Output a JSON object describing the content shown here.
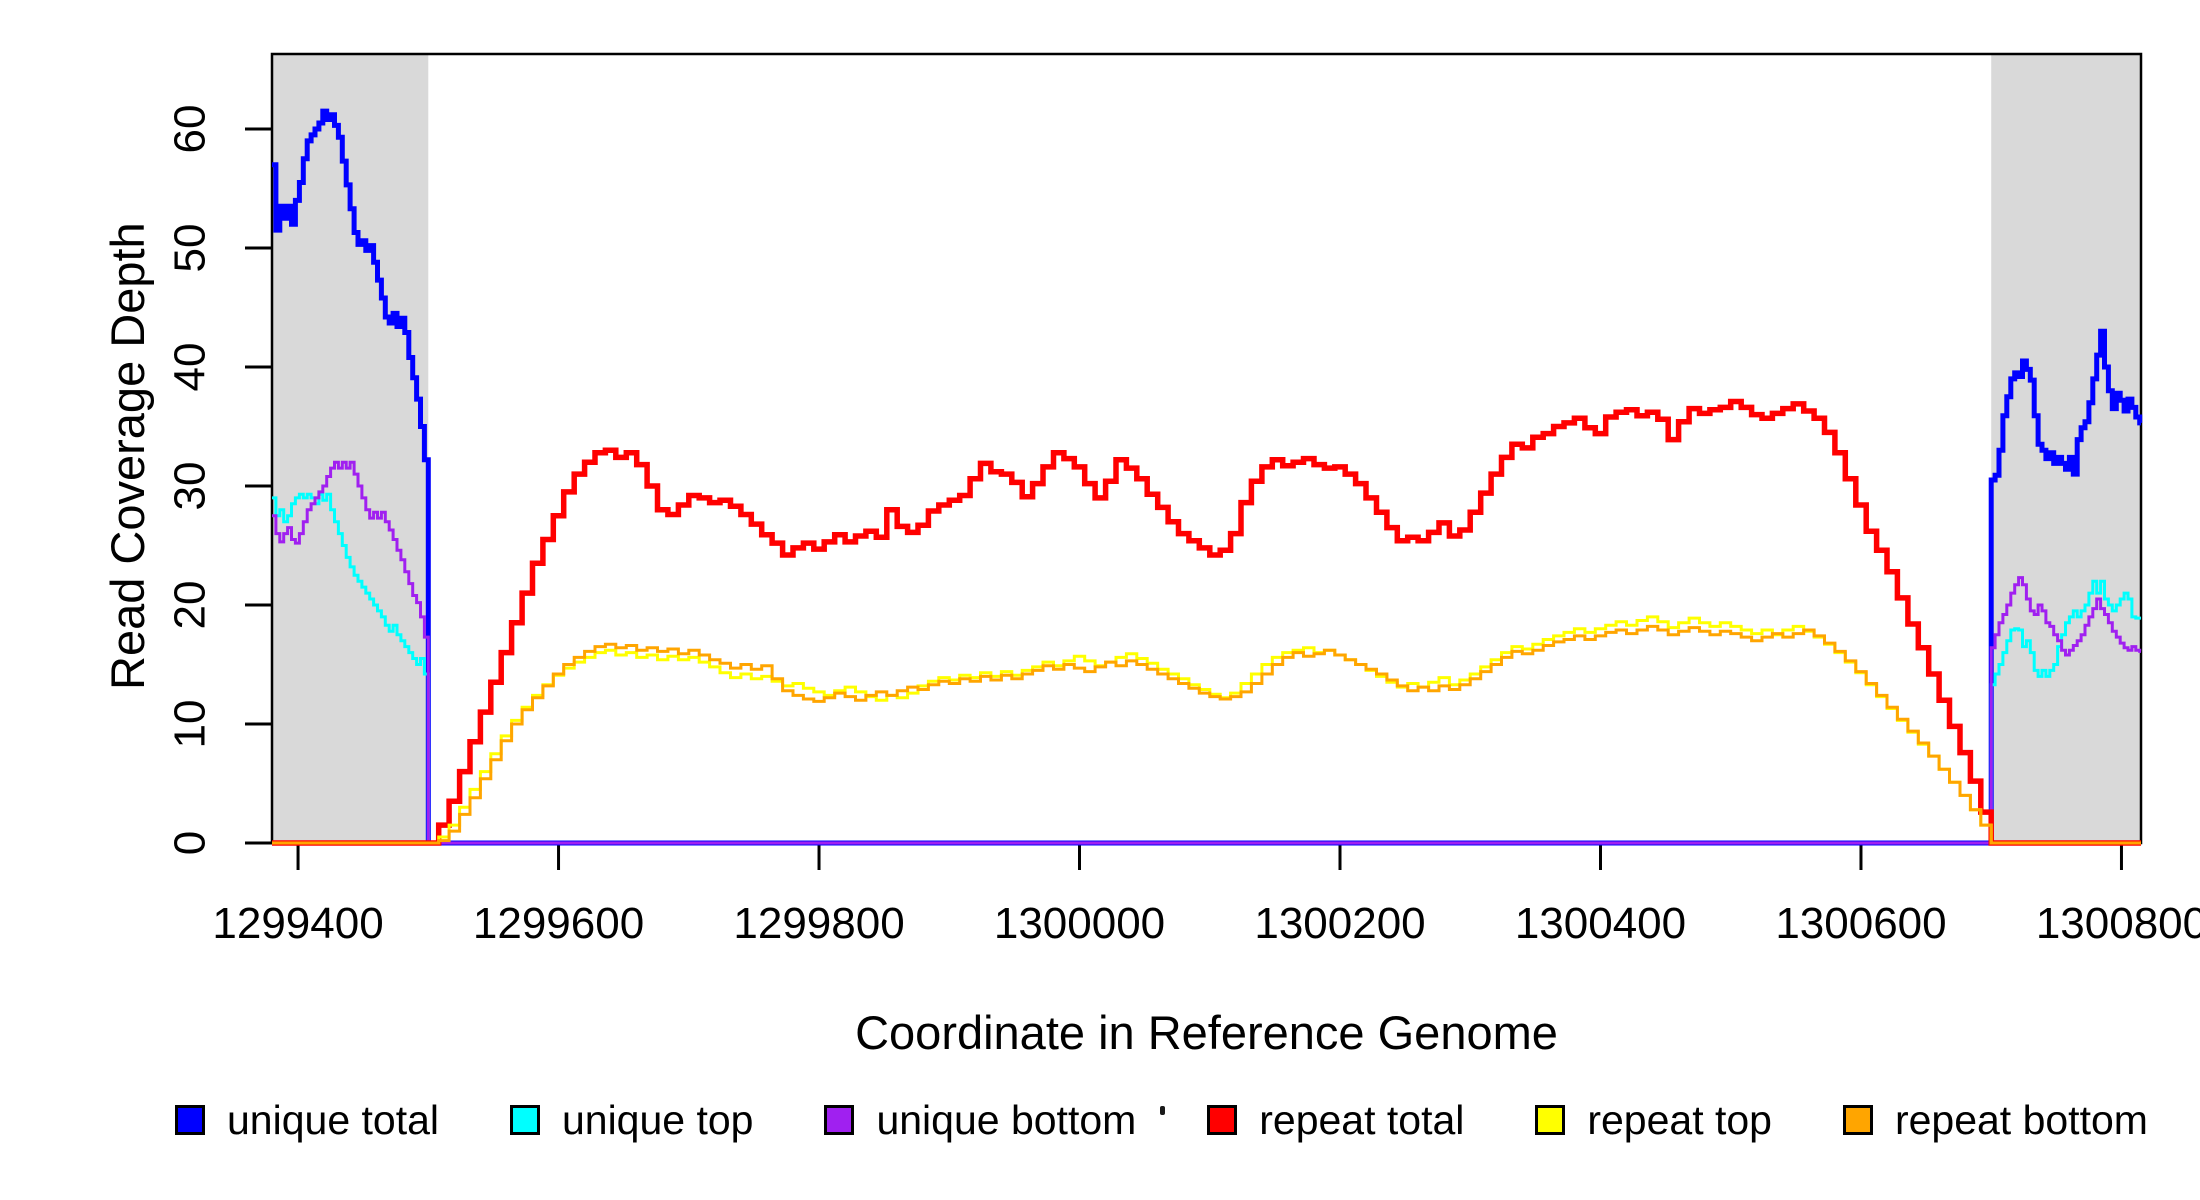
{
  "chart_data": {
    "type": "line",
    "title": "",
    "x_label": "Coordinate in Reference Genome",
    "y_label": "Read Coverage Depth",
    "xlim": [
      1299380,
      1300815
    ],
    "ylim": [
      0,
      66.3
    ],
    "x_ticks": [
      1299400,
      1299600,
      1299800,
      1300000,
      1300200,
      1300400,
      1300600,
      1300800
    ],
    "y_ticks": [
      0,
      10,
      20,
      30,
      40,
      50,
      60
    ],
    "grid": "off",
    "legend_position": "bottom",
    "shade_color": "#D9D9D9",
    "box_color": "#000000",
    "shaded_regions": [
      {
        "x_from": 1299380,
        "x_to": 1299500
      },
      {
        "x_from": 1300700,
        "x_to": 1300815
      }
    ],
    "series": [
      {
        "name": "unique total",
        "color": "#0000FF",
        "line_width": 5,
        "segments": [
          {
            "x0": 1299380,
            "step": 3,
            "v": [
              57,
              51.5,
              53.5,
              52.5,
              53.5,
              52,
              54,
              55.5,
              57.5,
              59,
              59.5,
              60,
              60.5,
              61.5,
              60.8,
              61.2,
              60.3,
              59.3,
              57.3,
              55.3,
              53.3,
              51.3,
              50.3,
              50.6,
              49.8,
              50.2,
              48.8,
              47.3,
              45.8,
              44.2,
              43.7,
              44.5,
              43.4,
              44.1,
              42.9,
              40.8,
              39.1,
              37.3,
              35,
              32.2
            ]
          },
          {
            "x0": 1299500,
            "step": 1,
            "v": [
              0
            ]
          },
          {
            "x0": 1300700,
            "step": 3,
            "v": [
              30.5,
              30.9,
              33,
              35.9,
              37.5,
              39,
              39.5,
              39.2,
              40.5,
              39.8,
              38.9,
              35.9,
              33.5,
              33,
              32.3,
              32.8,
              31.9,
              32.4,
              31.9,
              31.4,
              32.4,
              31,
              33.9,
              34.9,
              35.4,
              37,
              39,
              41,
              43,
              40,
              38,
              36.5,
              37.8,
              37.2,
              36.3,
              37.3,
              36.6,
              35.8,
              35.3
            ]
          }
        ]
      },
      {
        "name": "unique top",
        "color": "#00FFFF",
        "line_width": 3,
        "segments": [
          {
            "x0": 1299380,
            "step": 3,
            "v": [
              29,
              27.5,
              28,
              27,
              27.5,
              28.5,
              29,
              29.3,
              29,
              29.3,
              29,
              28.5,
              29.3,
              28.8,
              29.3,
              28,
              27,
              26,
              25,
              24,
              23.2,
              22.5,
              22,
              21.5,
              21,
              20.5,
              20,
              19.5,
              19,
              18.3,
              17.8,
              18.3,
              17.5,
              17,
              16.5,
              16,
              15.5,
              15,
              15.5,
              14.2
            ]
          },
          {
            "x0": 1299500,
            "step": 1,
            "v": [
              0
            ]
          },
          {
            "x0": 1300700,
            "step": 3,
            "v": [
              13.3,
              14.2,
              15,
              16,
              17,
              17.9,
              18,
              17.9,
              16.5,
              17,
              16,
              14.5,
              14,
              14.5,
              14,
              14.5,
              15,
              16.5,
              17.5,
              18.5,
              19,
              19.5,
              19,
              19.5,
              20,
              21,
              22,
              21,
              22,
              20.5,
              20,
              19.5,
              20,
              20.5,
              21,
              20.5,
              19,
              18.9,
              18.9
            ]
          }
        ]
      },
      {
        "name": "unique bottom",
        "color": "#A020F0",
        "line_width": 3,
        "segments": [
          {
            "x0": 1299380,
            "step": 3,
            "v": [
              27.5,
              26,
              25.3,
              26,
              26.5,
              25.5,
              25.2,
              26,
              27,
              28,
              28.5,
              29,
              29.5,
              30,
              30.8,
              31.5,
              32,
              31.5,
              32,
              31.5,
              32,
              31,
              30,
              29,
              28,
              27.3,
              27.8,
              27.3,
              27.8,
              27,
              26.3,
              25.5,
              24.6,
              23.8,
              22.8,
              21.8,
              20.8,
              20.2,
              19,
              17.3
            ]
          },
          {
            "x0": 1299500,
            "step": 1,
            "v": [
              0
            ]
          },
          {
            "x0": 1300700,
            "step": 3,
            "v": [
              16.4,
              17.5,
              18.5,
              19.2,
              20,
              21,
              21.7,
              22.3,
              21.7,
              20.5,
              19.5,
              19.2,
              20,
              19.5,
              18.5,
              18.2,
              17.5,
              17,
              16.2,
              15.8,
              16.2,
              16.6,
              17,
              17.5,
              18.3,
              19,
              19.7,
              20.5,
              19.7,
              19.2,
              18.5,
              17.8,
              17.3,
              16.8,
              16.4,
              16.2,
              16.5,
              16.2,
              16.1
            ]
          }
        ]
      },
      {
        "name": "repeat total",
        "color": "#FF0000",
        "line_width": 5.5,
        "segments": [
          {
            "x0": 1299380,
            "step": 1,
            "v": [
              0
            ]
          },
          {
            "x0": 1299500,
            "step": 8,
            "v": [
              0,
              1.5,
              3.5,
              6,
              8.5,
              11,
              13.5,
              16,
              18.5,
              21,
              23.5,
              25.5,
              27.5,
              29.5,
              31,
              32,
              32.8,
              33,
              32.4,
              32.8,
              31.8,
              30,
              28,
              27.6,
              28.4,
              29.2,
              29,
              28.6,
              28.8,
              28.3,
              27.6,
              26.8,
              25.9,
              25.2,
              24.2,
              24.8,
              25.2,
              24.7,
              25.3,
              25.9,
              25.3,
              25.8,
              26.2,
              25.7,
              28,
              26.6,
              26.1,
              26.7,
              27.9,
              28.4,
              28.8,
              29.2,
              30.6,
              31.9,
              31.2,
              31,
              30.3,
              29.1,
              30.2,
              31.6,
              32.8,
              32.3,
              31.6,
              30.2,
              29,
              30.4,
              32.2,
              31.5,
              30.6,
              29.3,
              28.2,
              27,
              26,
              25.4,
              24.8,
              24.2,
              24.6,
              26,
              28.6,
              30.4,
              31.6,
              32.2,
              31.7,
              32,
              32.3,
              31.8,
              31.5,
              31.6,
              31,
              30.2,
              29,
              27.8,
              26.5,
              25.4,
              25.7,
              25.4,
              26.1,
              26.9,
              25.8,
              26.3,
              27.8,
              29.4,
              31,
              32.4,
              33.5,
              33.2,
              34.1,
              34.4,
              35,
              35.3,
              35.7,
              34.9,
              34.4,
              35.8,
              36.2,
              36.4,
              35.9,
              36.2,
              35.6,
              33.9,
              35.4,
              36.5,
              36.1,
              36.4,
              36.6,
              37.1,
              36.6,
              36,
              35.7,
              36.1,
              36.5,
              36.9,
              36.3,
              35.7,
              34.5,
              32.8,
              30.6,
              28.4,
              26.2,
              24.6,
              22.8,
              20.6,
              18.4,
              16.4,
              14.2,
              12,
              9.8,
              7.6,
              5.2,
              2.6,
              0
            ]
          },
          {
            "x0": 1300700,
            "step": 1,
            "v": [
              0
            ]
          }
        ]
      },
      {
        "name": "repeat top",
        "color": "#FFFF00",
        "line_width": 3,
        "segments": [
          {
            "x0": 1299380,
            "step": 1,
            "v": [
              0
            ]
          },
          {
            "x0": 1299500,
            "step": 8,
            "v": [
              0,
              0.5,
              1.5,
              3,
              4.5,
              6,
              7.5,
              9,
              10.3,
              11.4,
              12.4,
              13.3,
              14.1,
              14.7,
              15.2,
              15.6,
              16,
              16.2,
              15.8,
              16,
              15.6,
              15.8,
              15.4,
              15.7,
              15.4,
              15.6,
              15.2,
              14.8,
              14.3,
              13.9,
              14.2,
              13.8,
              14,
              13.6,
              13.2,
              13.4,
              13,
              12.7,
              12.4,
              12.8,
              13.1,
              12.7,
              12.3,
              12,
              12.4,
              12.2,
              12.6,
              13.2,
              13.6,
              13.9,
              13.7,
              14.1,
              13.9,
              14.3,
              14,
              14.4,
              14.1,
              14.5,
              14.8,
              15.2,
              14.9,
              15.3,
              15.7,
              15.3,
              14.9,
              15.2,
              15.6,
              15.9,
              15.5,
              15.1,
              14.6,
              14.2,
              13.8,
              13.3,
              12.9,
              12.5,
              12.2,
              12.6,
              13.4,
              14.2,
              15,
              15.6,
              16,
              16.2,
              16.4,
              16,
              16.2,
              15.8,
              15.4,
              15,
              14.5,
              14,
              13.5,
              13.1,
              13.4,
              13.1,
              13.5,
              13.9,
              13.3,
              13.7,
              14.2,
              14.8,
              15.4,
              16,
              16.5,
              16.3,
              16.7,
              17.1,
              17.4,
              17.7,
              18,
              17.7,
              18,
              18.3,
              18.6,
              18.3,
              18.7,
              19,
              18.6,
              18.1,
              18.5,
              18.9,
              18.5,
              18.2,
              18.5,
              18.2,
              17.9,
              17.6,
              17.9,
              17.5,
              17.9,
              18.2,
              17.8,
              17.3,
              16.7,
              16,
              15.2,
              14.3,
              13.3,
              12.3,
              11.3,
              10.3,
              9.3,
              8.3,
              7.3,
              6.2,
              5.1,
              4,
              2.8,
              1.5,
              0
            ]
          },
          {
            "x0": 1300700,
            "step": 1,
            "v": [
              0
            ]
          }
        ]
      },
      {
        "name": "repeat bottom",
        "color": "#FFA500",
        "line_width": 3,
        "segments": [
          {
            "x0": 1299380,
            "step": 1,
            "v": [
              0
            ]
          },
          {
            "x0": 1299500,
            "step": 8,
            "v": [
              0,
              0.2,
              1,
              2.4,
              3.8,
              5.4,
              7,
              8.6,
              10,
              11.2,
              12.2,
              13.2,
              14.2,
              15,
              15.6,
              16.1,
              16.5,
              16.7,
              16.4,
              16.6,
              16.2,
              16.4,
              16.1,
              16.3,
              15.9,
              16.2,
              15.8,
              15.4,
              15.1,
              14.7,
              15,
              14.6,
              14.9,
              13.8,
              12.8,
              12.4,
              12.1,
              11.9,
              12.2,
              12.6,
              12.3,
              12,
              12.4,
              12.7,
              12.4,
              12.8,
              13.1,
              12.9,
              13.3,
              13.6,
              13.4,
              13.8,
              13.6,
              14,
              13.7,
              14.1,
              13.8,
              14.2,
              14.5,
              14.9,
              14.6,
              15,
              14.7,
              14.4,
              14.8,
              15.2,
              14.9,
              15.3,
              15,
              14.6,
              14.2,
              13.8,
              13.4,
              13,
              12.6,
              12.3,
              12.1,
              12.3,
              12.7,
              13.4,
              14.2,
              15,
              15.6,
              16,
              15.7,
              15.9,
              16.2,
              15.8,
              15.4,
              15,
              14.6,
              14.2,
              13.7,
              13.2,
              12.8,
              13.1,
              12.8,
              13.2,
              12.9,
              13.3,
              13.8,
              14.4,
              15,
              15.6,
              16.1,
              15.9,
              16.2,
              16.6,
              16.9,
              17.1,
              17.4,
              17.1,
              17.4,
              17.7,
              17.9,
              17.6,
              17.9,
              18.2,
              17.9,
              17.5,
              17.8,
              18.1,
              17.8,
              17.5,
              17.8,
              17.6,
              17.3,
              17,
              17.3,
              17.6,
              17.3,
              17.6,
              17.9,
              17.4,
              16.8,
              16.1,
              15.3,
              14.4,
              13.4,
              12.4,
              11.4,
              10.4,
              9.4,
              8.4,
              7.3,
              6.2,
              5.1,
              4,
              2.8,
              1.5,
              0
            ]
          },
          {
            "x0": 1300700,
            "step": 1,
            "v": [
              0
            ]
          }
        ]
      }
    ]
  },
  "legend": {
    "items": [
      {
        "label": "unique total",
        "color": "#0000FF"
      },
      {
        "label": "unique top",
        "color": "#00FFFF"
      },
      {
        "label": "unique bottom",
        "color": "#A020F0"
      },
      {
        "label": "repeat total",
        "color": "#FF0000"
      },
      {
        "label": "repeat top",
        "color": "#FFFF00"
      },
      {
        "label": "repeat bottom",
        "color": "#FFA500"
      }
    ]
  },
  "layout_text": {
    "x_axis_title": "Coordinate in Reference Genome",
    "y_axis_title": "Read Coverage Depth"
  }
}
